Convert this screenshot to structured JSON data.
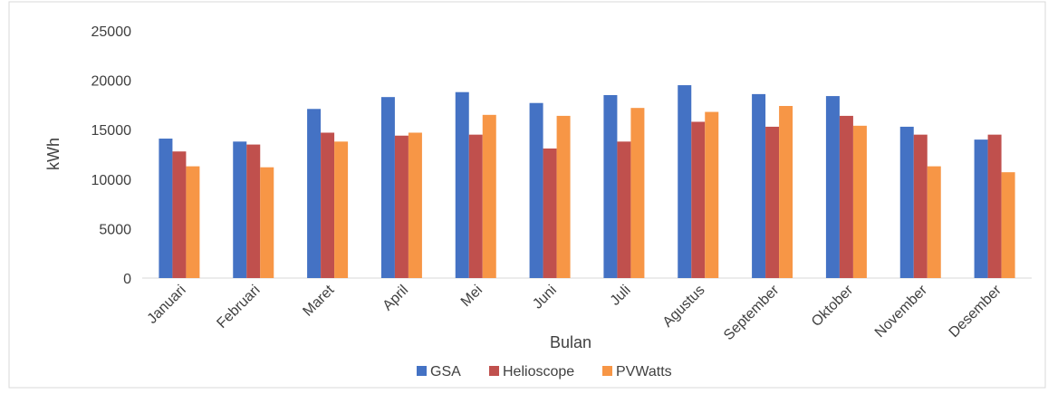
{
  "chart_data": {
    "type": "bar",
    "x_label": "Bulan",
    "y_label": "kWh",
    "categories": [
      "Januari",
      "Februari",
      "Maret",
      "April",
      "Mei",
      "Juni",
      "Juli",
      "Agustus",
      "September",
      "Oktober",
      "November",
      "Desember"
    ],
    "series": [
      {
        "name": "GSA",
        "color": "#4472c4",
        "values": [
          14100,
          13800,
          17100,
          18300,
          18800,
          17700,
          18500,
          19500,
          18600,
          18400,
          15300,
          14000
        ]
      },
      {
        "name": "Helioscope",
        "color": "#c0504d",
        "values": [
          12800,
          13500,
          14700,
          14400,
          14500,
          13100,
          13800,
          15800,
          15300,
          16400,
          14500,
          14500
        ]
      },
      {
        "name": "PVWatts",
        "color": "#f79646",
        "values": [
          11300,
          11200,
          13800,
          14700,
          16500,
          16400,
          17200,
          16800,
          17400,
          15400,
          11300,
          10700
        ]
      }
    ],
    "ylim": [
      0,
      25000
    ],
    "yticks": [
      0,
      5000,
      10000,
      15000,
      20000,
      25000
    ],
    "grid": false,
    "legend": "bottom"
  }
}
